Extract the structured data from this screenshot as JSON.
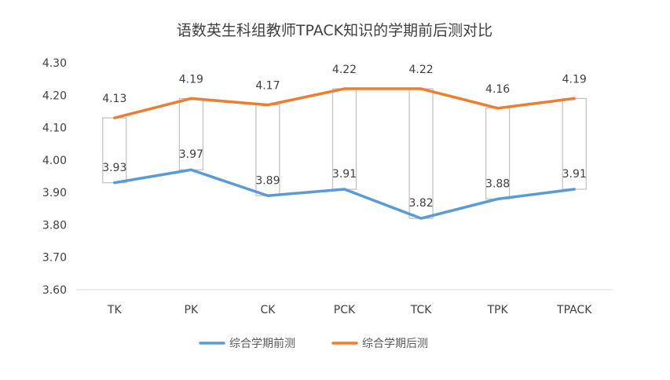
{
  "chart_data": {
    "type": "line",
    "title": "语数英生科组教师TPACK知识的学期前后测对比",
    "categories": [
      "TK",
      "PK",
      "CK",
      "PCK",
      "TCK",
      "TPK",
      "TPACK"
    ],
    "series": [
      {
        "name": "综合学期前测",
        "values": [
          3.93,
          3.97,
          3.89,
          3.91,
          3.82,
          3.88,
          3.91
        ],
        "color": "#5b9bd5"
      },
      {
        "name": "综合学期后测",
        "values": [
          4.13,
          4.19,
          4.17,
          4.22,
          4.22,
          4.16,
          4.19
        ],
        "color": "#ed7d31"
      }
    ],
    "ylim": [
      3.6,
      4.3
    ],
    "yticks": [
      "3.60",
      "3.70",
      "3.80",
      "3.90",
      "4.00",
      "4.10",
      "4.20",
      "4.30"
    ],
    "xlabel": "",
    "ylabel": "",
    "grid": false,
    "legend": "bottom",
    "high_low_bars": true,
    "data_labels": {
      "pre": [
        "3.93",
        "3.97",
        "3.89",
        "3.91",
        "3.82",
        "3.88",
        "3.91"
      ],
      "post": [
        "4.13",
        "4.19",
        "4.17",
        "4.22",
        "4.22",
        "4.16",
        "4.19"
      ]
    }
  }
}
